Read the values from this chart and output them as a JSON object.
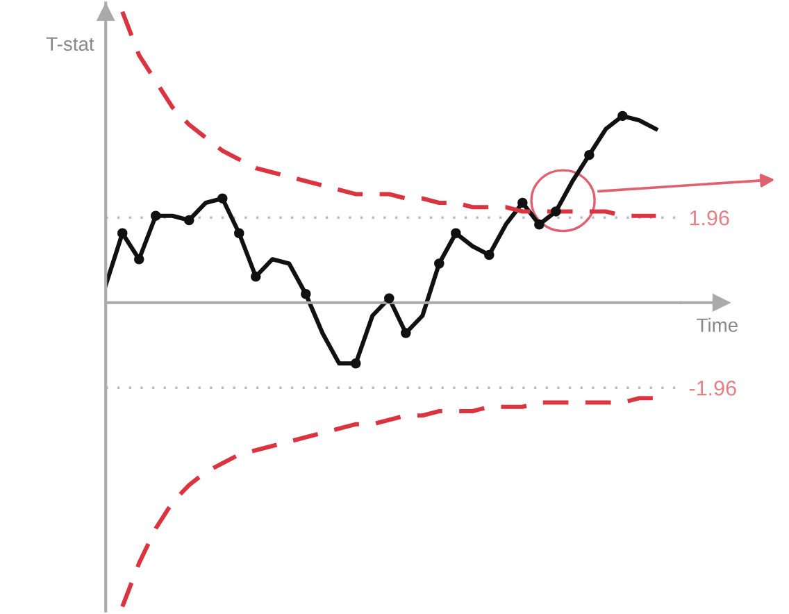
{
  "chart_data": {
    "type": "line",
    "xlabel": "Time",
    "ylabel": "T-stat",
    "categories": [
      null,
      null,
      null,
      null,
      null,
      null,
      null,
      null,
      null,
      null,
      null,
      null,
      null,
      null,
      null,
      null,
      null,
      null,
      null,
      null,
      null,
      null,
      null,
      null,
      null,
      null,
      null,
      null,
      null,
      null,
      null,
      null,
      null,
      null
    ],
    "ylim": [
      -7.1,
      6.9
    ],
    "yticks": [
      1.96,
      -1.96
    ],
    "tick_labels": "y",
    "grid": "y",
    "series": [
      {
        "color": "#111111",
        "line_style": "solid",
        "values": [
          0.4,
          1.6,
          1.0,
          2.0,
          2.0,
          1.9,
          2.3,
          2.4,
          1.6,
          0.6,
          1.0,
          0.9,
          0.2,
          -0.7,
          -1.4,
          -1.4,
          -0.3,
          0.1,
          -0.7,
          -0.3,
          0.9,
          1.6,
          1.3,
          1.1,
          1.8,
          2.3,
          1.8,
          2.1,
          2.8,
          3.4,
          4.0,
          4.3,
          4.2,
          4.0
        ]
      },
      {
        "type": "scatter",
        "color": "#111111",
        "marker": "circle",
        "values": [
          null,
          1.6,
          1.0,
          2.0,
          null,
          1.9,
          null,
          2.4,
          1.6,
          0.6,
          null,
          null,
          0.2,
          null,
          null,
          -1.4,
          null,
          0.1,
          -0.7,
          null,
          0.9,
          1.6,
          null,
          1.1,
          null,
          2.3,
          1.8,
          2.1,
          null,
          3.4,
          null,
          4.3,
          null,
          null
        ]
      },
      {
        "color": "#d9343f",
        "line_style": "dashed",
        "values": [
          null,
          6.7,
          5.7,
          5.1,
          4.5,
          4.1,
          3.8,
          3.5,
          3.3,
          3.1,
          3.0,
          2.9,
          2.8,
          2.7,
          2.6,
          2.5,
          2.5,
          2.5,
          2.4,
          2.4,
          2.3,
          2.3,
          2.2,
          2.2,
          2.2,
          2.1,
          2.1,
          2.1,
          2.1,
          2.1,
          2.1,
          2.0,
          2.0,
          2.0
        ]
      },
      {
        "color": "#d9343f",
        "line_style": "dashed",
        "values": [
          null,
          -7.0,
          -6.0,
          -5.2,
          -4.6,
          -4.2,
          -3.9,
          -3.7,
          -3.5,
          -3.4,
          -3.3,
          -3.2,
          -3.1,
          -3.0,
          -2.9,
          -2.8,
          -2.8,
          -2.7,
          -2.6,
          -2.6,
          -2.5,
          -2.5,
          -2.5,
          -2.4,
          -2.4,
          -2.4,
          -2.3,
          -2.3,
          -2.3,
          -2.3,
          -2.3,
          -2.3,
          -2.2,
          -2.2
        ]
      }
    ]
  }
}
